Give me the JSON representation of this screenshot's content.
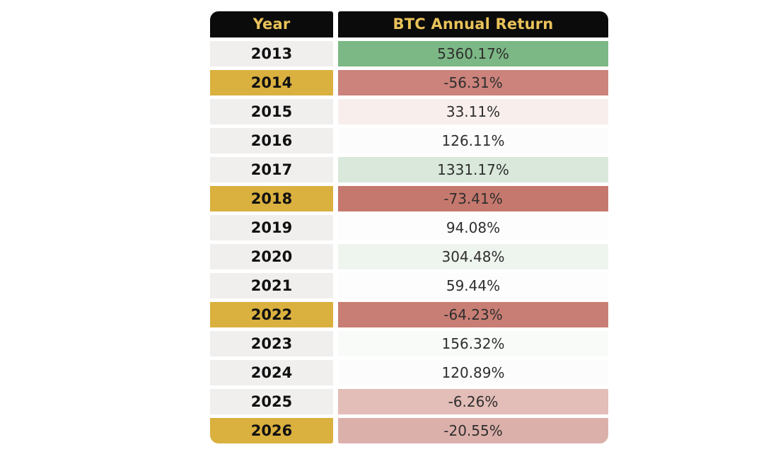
{
  "header": {
    "col_year": "Year",
    "col_return": "BTC Annual Return"
  },
  "colors": {
    "page_bg": "#ffffff",
    "header_bg": "#0b0b0b",
    "header_text": "#e9c25a",
    "year_text": "#111111",
    "value_text": "#2e2e2e",
    "gold_year_bg": "#dab03e",
    "gray_year_bg": "#f0efee"
  },
  "table": {
    "rows": [
      {
        "year": "2013",
        "value": "5360.17%",
        "year_bg": "#f0efee",
        "value_bg": "#7cb885"
      },
      {
        "year": "2014",
        "value": "-56.31%",
        "year_bg": "#dab03e",
        "value_bg": "#cb837b"
      },
      {
        "year": "2015",
        "value": "33.11%",
        "year_bg": "#f0efee",
        "value_bg": "#f8efed"
      },
      {
        "year": "2016",
        "value": "126.11%",
        "year_bg": "#f0efee",
        "value_bg": "#fbfcfb"
      },
      {
        "year": "2017",
        "value": "1331.17%",
        "year_bg": "#f0efee",
        "value_bg": "#d9e8da"
      },
      {
        "year": "2018",
        "value": "-73.41%",
        "year_bg": "#dab03e",
        "value_bg": "#c5786d"
      },
      {
        "year": "2019",
        "value": "94.08%",
        "year_bg": "#f0efee",
        "value_bg": "#fcfdfc"
      },
      {
        "year": "2020",
        "value": "304.48%",
        "year_bg": "#f0efee",
        "value_bg": "#eef4ee"
      },
      {
        "year": "2021",
        "value": "59.44%",
        "year_bg": "#f0efee",
        "value_bg": "#fdfdfd"
      },
      {
        "year": "2022",
        "value": "-64.23%",
        "year_bg": "#dab03e",
        "value_bg": "#c87e74"
      },
      {
        "year": "2023",
        "value": "156.32%",
        "year_bg": "#f0efee",
        "value_bg": "#f8fbf8"
      },
      {
        "year": "2024",
        "value": "120.89%",
        "year_bg": "#f0efee",
        "value_bg": "#fbfcfb"
      },
      {
        "year": "2025",
        "value": "-6.26%",
        "year_bg": "#f0efee",
        "value_bg": "#e3bdb7"
      },
      {
        "year": "2026",
        "value": "-20.55%",
        "year_bg": "#dab03e",
        "value_bg": "#dcb0aa"
      }
    ]
  },
  "chart_data": {
    "type": "table",
    "columns": [
      "Year",
      "BTC Annual Return"
    ],
    "rows": [
      [
        "2013",
        "5360.17%"
      ],
      [
        "2014",
        "-56.31%"
      ],
      [
        "2015",
        "33.11%"
      ],
      [
        "2016",
        "126.11%"
      ],
      [
        "2017",
        "1331.17%"
      ],
      [
        "2018",
        "-73.41%"
      ],
      [
        "2019",
        "94.08%"
      ],
      [
        "2020",
        "304.48%"
      ],
      [
        "2021",
        "59.44%"
      ],
      [
        "2022",
        "-64.23%"
      ],
      [
        "2023",
        "156.32%"
      ],
      [
        "2024",
        "120.89%"
      ],
      [
        "2025",
        "-6.26%"
      ],
      [
        "2026",
        "-20.55%"
      ]
    ],
    "years": [
      2013,
      2014,
      2015,
      2016,
      2017,
      2018,
      2019,
      2020,
      2021,
      2022,
      2023,
      2024,
      2025,
      2026
    ],
    "returns_pct": [
      5360.17,
      -56.31,
      33.11,
      126.11,
      1331.17,
      -73.41,
      94.08,
      304.48,
      59.44,
      -64.23,
      156.32,
      120.89,
      -6.26,
      -20.55
    ],
    "highlighted_gold_years": [
      2014,
      2018,
      2022,
      2026
    ],
    "value_cell_shading": "heatmap: green for large positive returns, red for negative returns"
  }
}
